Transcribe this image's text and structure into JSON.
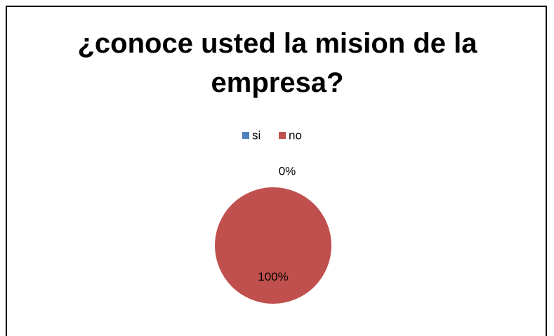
{
  "chart_data": {
    "type": "pie",
    "title": "¿conoce usted la mision de la empresa?",
    "categories": [
      "si",
      "no"
    ],
    "values": [
      0,
      100
    ],
    "value_labels": [
      "0%",
      "100%"
    ],
    "colors": [
      "#4f81bd",
      "#c0504d"
    ],
    "legend": "top"
  }
}
